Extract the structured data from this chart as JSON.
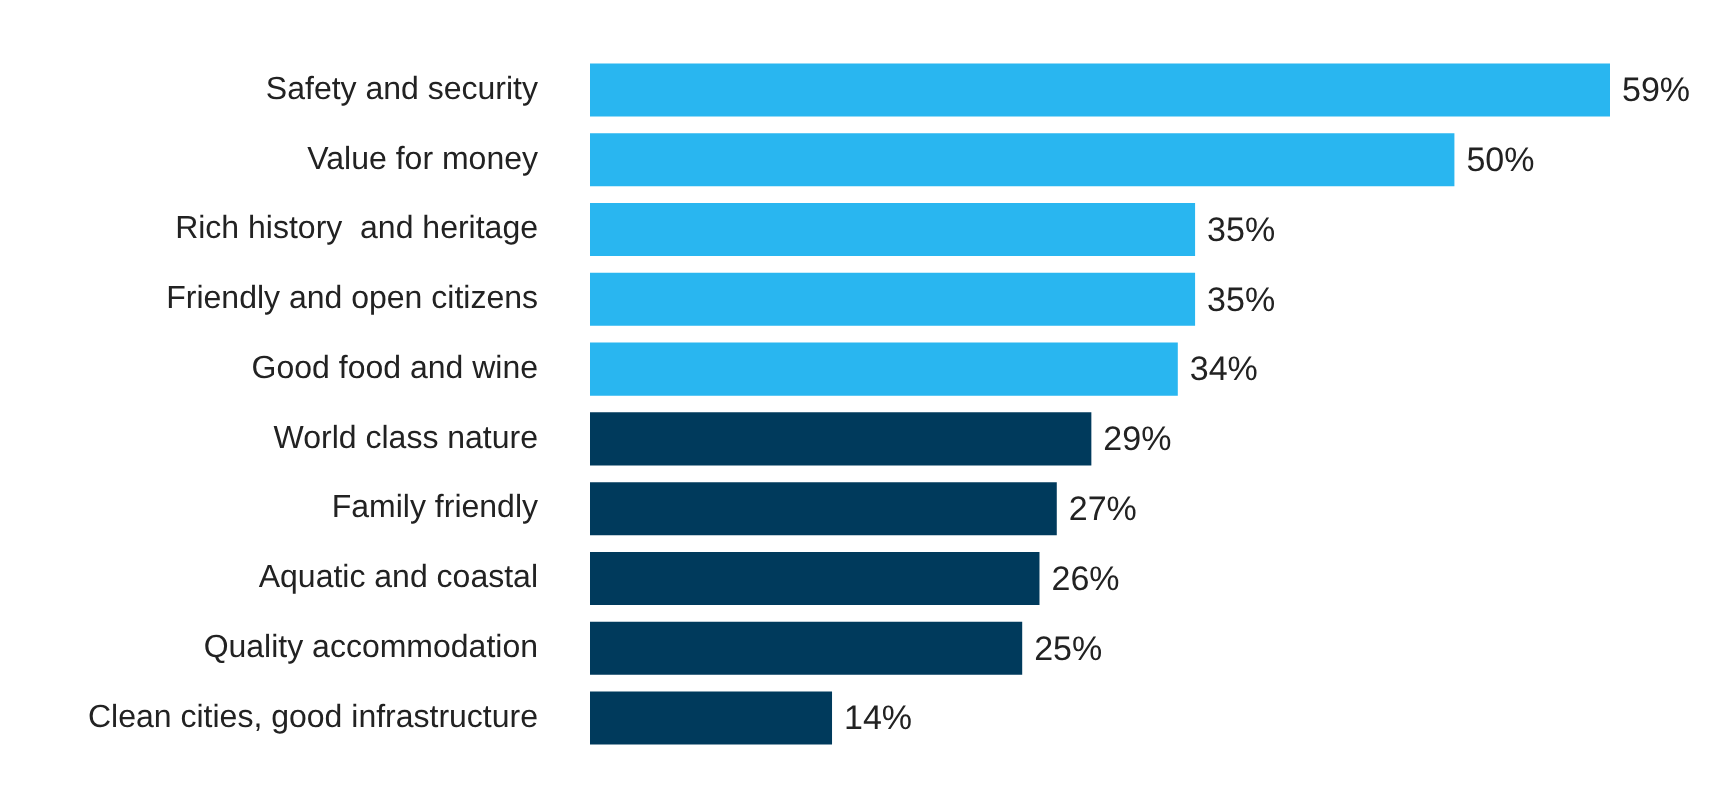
{
  "chart_data": {
    "type": "bar",
    "orientation": "horizontal",
    "categories": [
      "Safety and security",
      "Value for money",
      "Rich history  and heritage",
      "Friendly and open citizens",
      "Good food and wine",
      "World class nature",
      "Family friendly",
      "Aquatic and coastal",
      "Quality accommodation",
      "Clean cities, good infrastructure"
    ],
    "values": [
      59,
      50,
      35,
      35,
      34,
      29,
      27,
      26,
      25,
      14
    ],
    "colors": [
      "#29b6f0",
      "#29b6f0",
      "#29b6f0",
      "#29b6f0",
      "#29b6f0",
      "#003a5c",
      "#003a5c",
      "#003a5c",
      "#003a5c",
      "#003a5c"
    ],
    "value_labels": [
      "59%",
      "50%",
      "35%",
      "35%",
      "34%",
      "29%",
      "27%",
      "26%",
      "25%",
      "14%"
    ],
    "legend": false
  }
}
